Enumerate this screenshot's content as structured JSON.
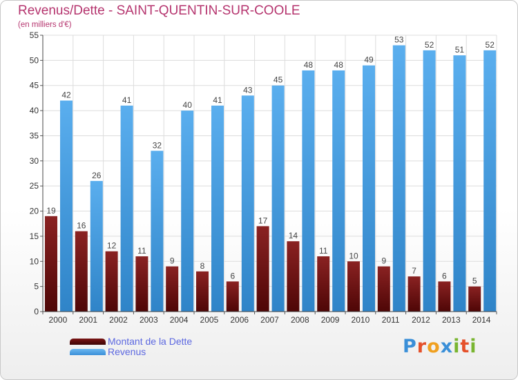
{
  "chart_data": {
    "type": "bar",
    "title": "Revenus/Dette - SAINT-QUENTIN-SUR-COOLE",
    "subtitle": "(en milliers d'€)",
    "categories": [
      "2000",
      "2001",
      "2002",
      "2003",
      "2004",
      "2005",
      "2006",
      "2007",
      "2008",
      "2009",
      "2010",
      "2011",
      "2012",
      "2013",
      "2014"
    ],
    "series": [
      {
        "name": "Montant de la Dette",
        "color": "#6e1010",
        "values": [
          19,
          16,
          12,
          11,
          9,
          8,
          6,
          17,
          14,
          11,
          10,
          9,
          7,
          6,
          5
        ]
      },
      {
        "name": "Revenus",
        "color": "#4a9fe0",
        "values": [
          42,
          26,
          41,
          32,
          40,
          41,
          43,
          45,
          48,
          48,
          49,
          53,
          52,
          51,
          52
        ]
      }
    ],
    "yticks": [
      0,
      5,
      10,
      15,
      20,
      25,
      30,
      35,
      40,
      45,
      50,
      55
    ],
    "ylim": [
      0,
      55
    ],
    "grid": true,
    "legend_position": "bottom-left",
    "xlabel": "",
    "ylabel": ""
  },
  "branding": {
    "logo_letters": [
      "P",
      "r",
      "o",
      "x",
      "i",
      "t",
      "i"
    ],
    "logo_colors": [
      "#3a8fd8",
      "#e5502a",
      "#f0a020",
      "#3a8fd8",
      "#79b530",
      "#e5502a",
      "#79b530"
    ]
  }
}
